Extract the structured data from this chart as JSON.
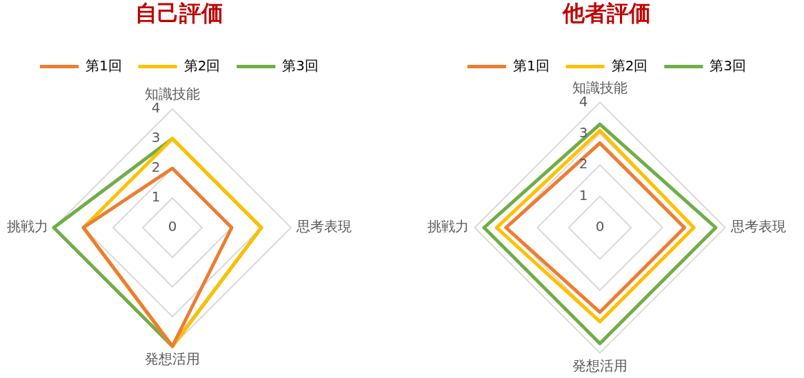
{
  "chart_data": [
    {
      "type": "radar",
      "title": "自己評価",
      "categories": [
        "知識技能",
        "思考表現",
        "発想活用",
        "挑戦力"
      ],
      "series": [
        {
          "name": "第1回",
          "color": "#ed7d31",
          "values": [
            2,
            2,
            4,
            3
          ]
        },
        {
          "name": "第2回",
          "color": "#ffc000",
          "values": [
            3,
            3,
            4,
            3
          ]
        },
        {
          "name": "第3回",
          "color": "#70ad47",
          "values": [
            3,
            3,
            4,
            4
          ]
        }
      ],
      "ylim": [
        0,
        4
      ],
      "yticks": [
        0,
        1,
        2,
        3,
        4
      ],
      "grid": true,
      "legend": "top",
      "marker": "none"
    },
    {
      "type": "radar",
      "title": "他者評価",
      "categories": [
        "知識技能",
        "思考表現",
        "発想活用",
        "挑戦力"
      ],
      "series": [
        {
          "name": "第1回",
          "color": "#ed7d31",
          "values": [
            2.7,
            2.7,
            2.7,
            3.0
          ]
        },
        {
          "name": "第2回",
          "color": "#ffc000",
          "values": [
            3.1,
            3.0,
            3.0,
            3.3
          ]
        },
        {
          "name": "第3回",
          "color": "#70ad47",
          "values": [
            3.3,
            3.7,
            3.7,
            3.7
          ]
        }
      ],
      "ylim": [
        0,
        4
      ],
      "yticks": [
        0,
        1,
        2,
        3,
        4
      ],
      "grid": true,
      "legend": "top",
      "marker": "none"
    }
  ]
}
